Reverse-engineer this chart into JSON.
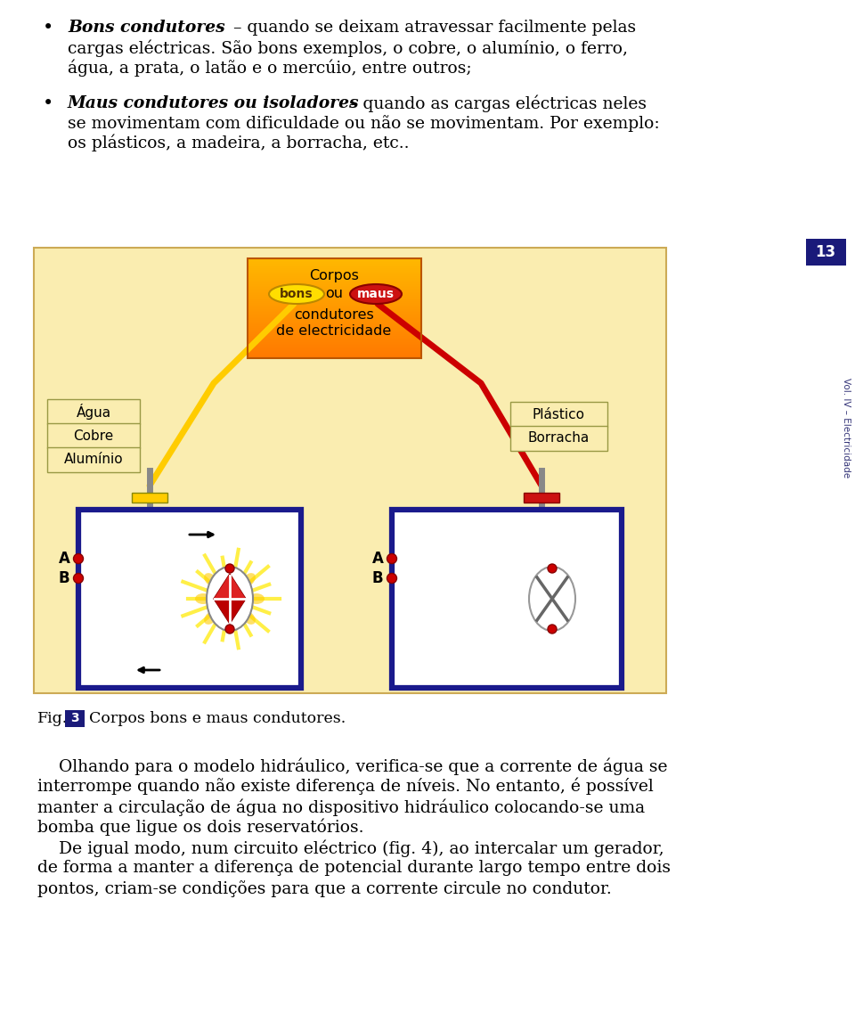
{
  "page_bg": "#ffffff",
  "diagram_box_color": "#faedb0",
  "circuit_border": "#1a1a8c",
  "label_box_color": "#faedb0",
  "page_number": "13",
  "fig_number": "3",
  "fig_caption": "Corpos bons e maus condutores."
}
